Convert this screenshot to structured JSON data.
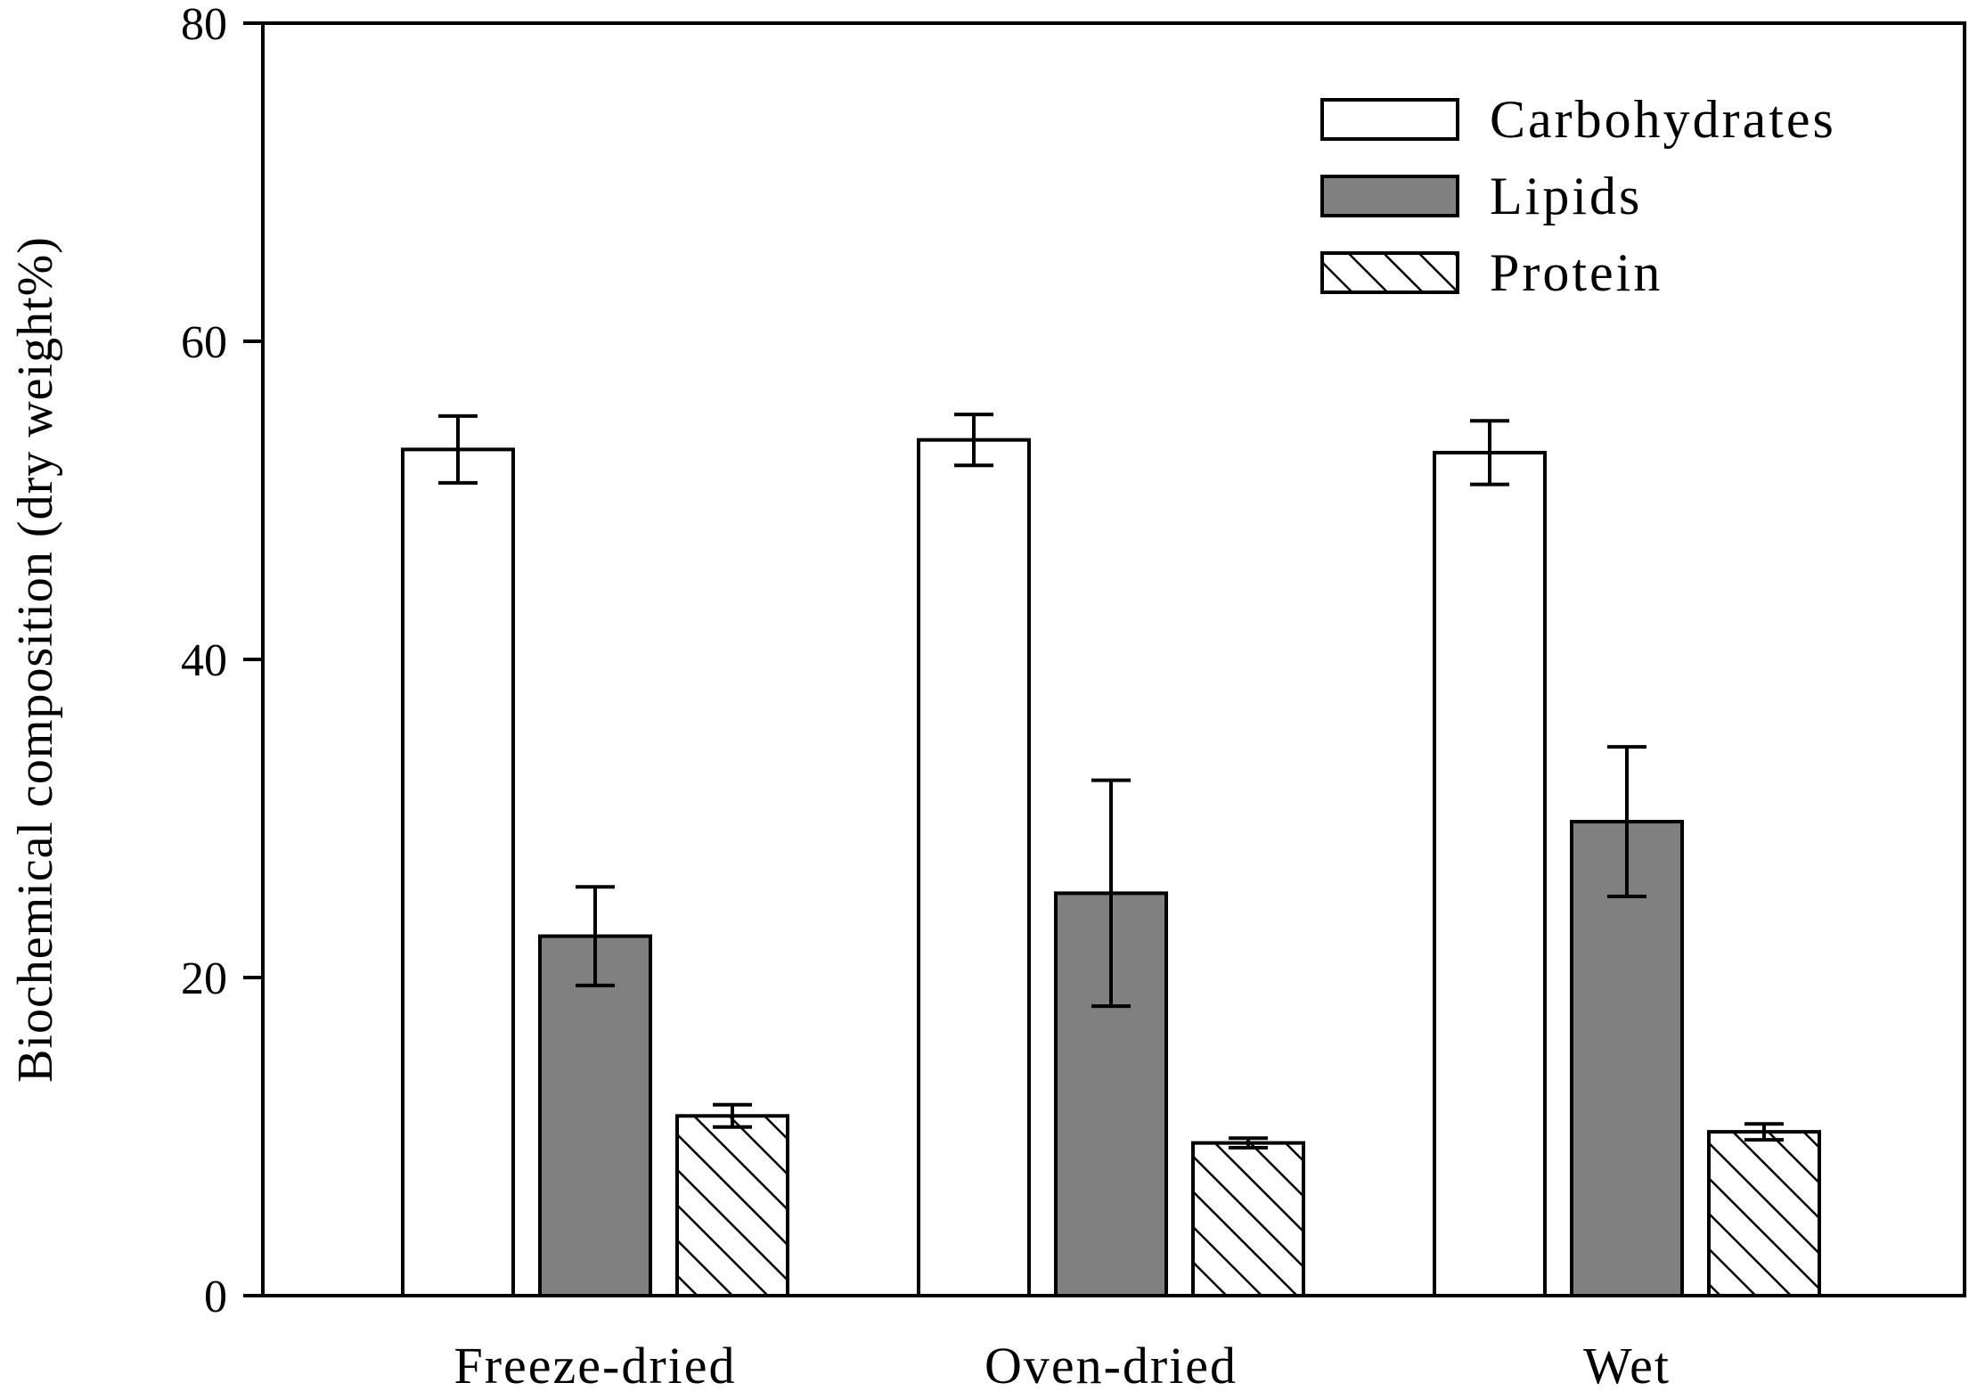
{
  "chart_data": {
    "type": "bar",
    "title": "",
    "xlabel": "",
    "ylabel": "Biochemical composition (dry weight%)",
    "ylim": [
      0,
      80
    ],
    "yticks": [
      0,
      20,
      40,
      60,
      80
    ],
    "grid": false,
    "legend_position": "top-right",
    "categories": [
      "Freeze-dried",
      "Oven-dried",
      "Wet"
    ],
    "series": [
      {
        "name": "Carbohydrates",
        "fill": "#ffffff",
        "pattern": "none",
        "values": [
          53.2,
          53.8,
          53.0
        ],
        "errors": [
          2.1,
          1.6,
          2.0
        ]
      },
      {
        "name": "Lipids",
        "fill": "#808080",
        "pattern": "none",
        "values": [
          22.6,
          25.3,
          29.8
        ],
        "errors": [
          3.1,
          7.1,
          4.7
        ]
      },
      {
        "name": "Protein",
        "fill": "#ffffff",
        "pattern": "hatch",
        "values": [
          11.3,
          9.6,
          10.3
        ],
        "errors": [
          0.7,
          0.3,
          0.5
        ]
      }
    ]
  }
}
